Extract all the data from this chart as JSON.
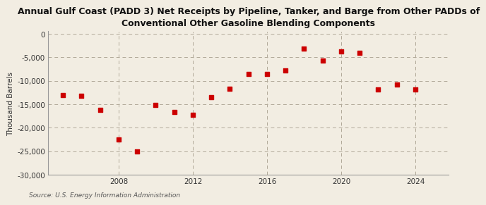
{
  "title": "Annual Gulf Coast (PADD 3) Net Receipts by Pipeline, Tanker, and Barge from Other PADDs of\nConventional Other Gasoline Blending Components",
  "ylabel": "Thousand Barrels",
  "source": "Source: U.S. Energy Information Administration",
  "background_color": "#f2ede2",
  "plot_background_color": "#f2ede2",
  "marker_color": "#cc0000",
  "years": [
    2005,
    2006,
    2007,
    2008,
    2009,
    2010,
    2011,
    2012,
    2013,
    2014,
    2015,
    2016,
    2017,
    2018,
    2019,
    2020,
    2021,
    2022,
    2023,
    2024
  ],
  "values": [
    -13000,
    -13200,
    -16200,
    -22500,
    -25000,
    -15100,
    -16700,
    -17200,
    -13500,
    -11700,
    -8500,
    -8500,
    -7800,
    -3200,
    -5700,
    -3800,
    -4100,
    -11800,
    -10800,
    -11900
  ],
  "ylim": [
    -30000,
    500
  ],
  "yticks": [
    0,
    -5000,
    -10000,
    -15000,
    -20000,
    -25000,
    -30000
  ],
  "xlim": [
    2004.2,
    2025.8
  ],
  "xticks": [
    2008,
    2012,
    2016,
    2020,
    2024
  ],
  "grid_color": "#b0a898",
  "title_fontsize": 9,
  "axis_fontsize": 7.5,
  "source_fontsize": 6.5
}
